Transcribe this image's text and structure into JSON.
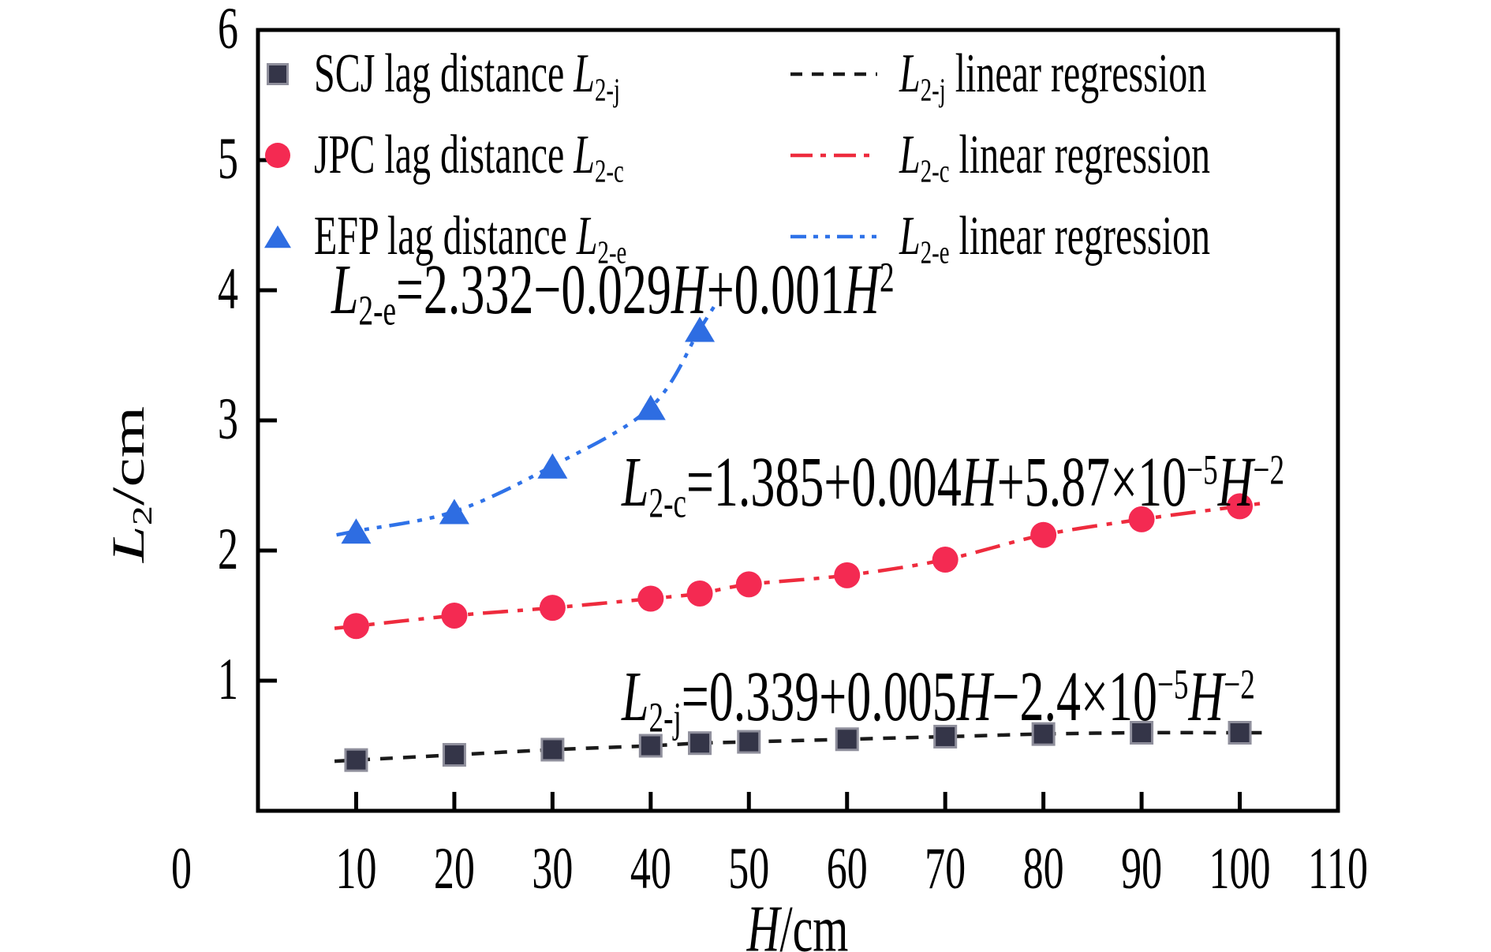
{
  "chart_data": {
    "type": "scatter",
    "title": "",
    "xlabel": "H/cm",
    "ylabel": "L2/cm",
    "xlim": [
      0,
      110
    ],
    "ylim": [
      0,
      6
    ],
    "x_ticks": [
      0,
      10,
      20,
      30,
      40,
      50,
      60,
      70,
      80,
      90,
      100,
      110
    ],
    "y_ticks": [
      1,
      2,
      3,
      4,
      5,
      6
    ],
    "grid": false,
    "legend_position": "top-left-inside",
    "series": [
      {
        "name": "SCJ lag distance L2-j",
        "marker": "square",
        "marker_color": "#343548",
        "marker_border": "#8f8f9c",
        "line_color": "#1a1a1a",
        "line_style": "dash",
        "x": [
          10,
          20,
          30,
          40,
          45,
          50,
          60,
          70,
          80,
          90,
          100
        ],
        "y": [
          0.39,
          0.43,
          0.47,
          0.5,
          0.52,
          0.53,
          0.55,
          0.57,
          0.59,
          0.6,
          0.6
        ],
        "regression_label": "L2-j linear regression",
        "regression_equation": "L2-j = 0.339 + 0.005H − 2.4×10^−5 H^−2"
      },
      {
        "name": "JPC lag distance L2-c",
        "marker": "circle",
        "marker_color": "#f42a52",
        "marker_border": "none",
        "line_color": "#ee2b3d",
        "line_style": "dash-dot",
        "x": [
          10,
          20,
          30,
          40,
          45,
          50,
          60,
          70,
          80,
          90,
          100
        ],
        "y": [
          1.42,
          1.5,
          1.56,
          1.63,
          1.67,
          1.74,
          1.81,
          1.93,
          2.12,
          2.24,
          2.34
        ],
        "regression_label": "L2-c linear regression",
        "regression_equation": "L2-c = 1.385 + 0.004H + 5.87×10^−5 H^−2"
      },
      {
        "name": "EFP lag distance L2-e",
        "marker": "triangle",
        "marker_color": "#2e6de2",
        "marker_border": "none",
        "line_color": "#2f72e8",
        "line_style": "dash-dot-dot",
        "x": [
          10,
          20,
          30,
          40,
          45
        ],
        "y": [
          2.15,
          2.3,
          2.65,
          3.1,
          3.7
        ],
        "regression_label": "L2-e linear regression",
        "regression_equation": "L2-e = 2.332 − 0.029H + 0.001H^2"
      }
    ]
  },
  "text": {
    "x_tick_labels": [
      "0",
      "10",
      "20",
      "30",
      "40",
      "50",
      "60",
      "70",
      "80",
      "90",
      "100",
      "110"
    ],
    "y_tick_labels": [
      "1",
      "2",
      "3",
      "4",
      "5",
      "6"
    ],
    "x_axis_title": [
      {
        "t": "H",
        "i": true
      },
      {
        "t": "/cm"
      }
    ],
    "y_axis_title": [
      {
        "t": "L",
        "i": true
      },
      {
        "t": "2",
        "sub": true
      },
      {
        "t": "/cm"
      }
    ],
    "legend_rows": [
      {
        "label": [
          {
            "t": "SCJ lag distance "
          },
          {
            "t": "L",
            "i": true
          },
          {
            "t": "2-j",
            "sub": true
          }
        ],
        "line_label": [
          {
            "t": "L",
            "i": true
          },
          {
            "t": "2-j",
            "sub": true
          },
          {
            "t": " linear regression"
          }
        ]
      },
      {
        "label": [
          {
            "t": "JPC lag distance "
          },
          {
            "t": "L",
            "i": true
          },
          {
            "t": "2-c",
            "sub": true
          }
        ],
        "line_label": [
          {
            "t": "L",
            "i": true
          },
          {
            "t": "2-c",
            "sub": true
          },
          {
            "t": " linear regression"
          }
        ]
      },
      {
        "label": [
          {
            "t": "EFP lag distance "
          },
          {
            "t": "L",
            "i": true
          },
          {
            "t": "2-e",
            "sub": true
          }
        ],
        "line_label": [
          {
            "t": "L",
            "i": true
          },
          {
            "t": "2-e",
            "sub": true
          },
          {
            "t": " linear regression"
          }
        ]
      }
    ],
    "equations": [
      {
        "id": "efp",
        "segments": [
          {
            "t": "L",
            "i": true
          },
          {
            "t": "2-e",
            "sub": true
          },
          {
            "t": "=2.332−0.029"
          },
          {
            "t": "H",
            "i": true
          },
          {
            "t": "+0.001"
          },
          {
            "t": "H",
            "i": true
          },
          {
            "t": "2",
            "sup": true
          }
        ]
      },
      {
        "id": "jpc",
        "segments": [
          {
            "t": "L",
            "i": true
          },
          {
            "t": "2-c",
            "sub": true
          },
          {
            "t": "=1.385+0.004"
          },
          {
            "t": "H",
            "i": true
          },
          {
            "t": "+5.87×10"
          },
          {
            "t": "−5",
            "sup": true
          },
          {
            "t": "H",
            "i": true
          },
          {
            "t": "−2",
            "sup": true
          }
        ]
      },
      {
        "id": "scj",
        "segments": [
          {
            "t": "L",
            "i": true
          },
          {
            "t": "2-j",
            "sub": true
          },
          {
            "t": "=0.339+0.005"
          },
          {
            "t": "H",
            "i": true
          },
          {
            "t": "−2.4×10"
          },
          {
            "t": "−5",
            "sup": true
          },
          {
            "t": "H",
            "i": true
          },
          {
            "t": "−2",
            "sup": true
          }
        ]
      }
    ]
  },
  "colors": {
    "axis": "#000000",
    "background": "#ffffff"
  }
}
